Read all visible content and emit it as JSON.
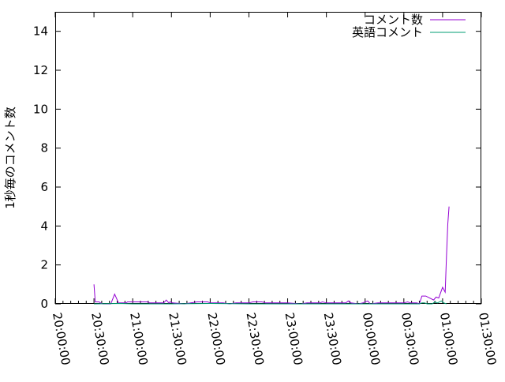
{
  "chart_data": {
    "type": "line",
    "title": "",
    "xlabel": "",
    "ylabel": "1秒毎のコメント数",
    "ylim": [
      0,
      15
    ],
    "yticks": [
      "0",
      "2",
      "4",
      "6",
      "8",
      "10",
      "12",
      "14"
    ],
    "xlim": [
      "20:00:00",
      "01:30:00"
    ],
    "xticks": [
      "20:00:00",
      "20:30:00",
      "21:00:00",
      "21:30:00",
      "22:00:00",
      "22:30:00",
      "23:00:00",
      "23:30:00",
      "00:00:00",
      "00:30:00",
      "01:00:00",
      "01:30:00"
    ],
    "grid": false,
    "legend": "top-right",
    "series": [
      {
        "name": "コメント数",
        "color": "#9400d3",
        "points": [
          [
            "20:30",
            1.0
          ],
          [
            "20:31",
            0.1
          ],
          [
            "20:34",
            0.1
          ],
          [
            "20:35",
            0.05
          ],
          [
            "20:37",
            0.0
          ],
          [
            "20:43",
            0.0
          ],
          [
            "20:46",
            0.5
          ],
          [
            "20:49",
            0.05
          ],
          [
            "20:55",
            0.05
          ],
          [
            "20:56",
            0.1
          ],
          [
            "21:05",
            0.1
          ],
          [
            "21:12",
            0.1
          ],
          [
            "21:13",
            0.05
          ],
          [
            "21:24",
            0.05
          ],
          [
            "21:26",
            0.2
          ],
          [
            "21:28",
            0.05
          ],
          [
            "21:29",
            0.1
          ],
          [
            "21:31",
            0.05
          ],
          [
            "21:40",
            0.0
          ],
          [
            "21:45",
            0.05
          ],
          [
            "21:50",
            0.1
          ],
          [
            "21:58",
            0.1
          ],
          [
            "22:00",
            0.05
          ],
          [
            "22:10",
            0.05
          ],
          [
            "22:15",
            0.0
          ],
          [
            "22:20",
            0.05
          ],
          [
            "22:30",
            0.05
          ],
          [
            "22:33",
            0.1
          ],
          [
            "22:40",
            0.1
          ],
          [
            "22:43",
            0.05
          ],
          [
            "23:00",
            0.05
          ],
          [
            "23:10",
            0.0
          ],
          [
            "23:15",
            0.05
          ],
          [
            "23:25",
            0.05
          ],
          [
            "23:27",
            0.1
          ],
          [
            "23:30",
            0.05
          ],
          [
            "23:45",
            0.05
          ],
          [
            "23:47",
            0.15
          ],
          [
            "23:49",
            0.05
          ],
          [
            "23:55",
            0.0
          ],
          [
            "23:58",
            0.05
          ],
          [
            "00:02",
            0.15
          ],
          [
            "00:04",
            0.0
          ],
          [
            "00:10",
            0.05
          ],
          [
            "00:20",
            0.05
          ],
          [
            "00:30",
            0.05
          ],
          [
            "00:33",
            0.1
          ],
          [
            "00:35",
            0.05
          ],
          [
            "00:40",
            0.05
          ],
          [
            "00:42",
            0.0
          ],
          [
            "00:44",
            0.4
          ],
          [
            "00:47",
            0.4
          ],
          [
            "00:53",
            0.2
          ],
          [
            "00:55",
            0.35
          ],
          [
            "00:57",
            0.3
          ],
          [
            "01:00",
            0.85
          ],
          [
            "01:02",
            0.6
          ],
          [
            "01:03",
            2.4
          ],
          [
            "01:04",
            4.1
          ],
          [
            "01:05",
            5.0
          ]
        ]
      },
      {
        "name": "英語コメント",
        "color": "#009e73",
        "points": [
          [
            "20:30",
            0.0
          ],
          [
            "20:50",
            0.02
          ],
          [
            "21:00",
            0.0
          ],
          [
            "21:30",
            0.0
          ],
          [
            "22:00",
            0.02
          ],
          [
            "22:30",
            0.0
          ],
          [
            "23:00",
            0.0
          ],
          [
            "23:30",
            0.0
          ],
          [
            "00:00",
            0.0
          ],
          [
            "00:30",
            0.0
          ],
          [
            "00:42",
            0.0
          ],
          [
            "00:44",
            0.05
          ],
          [
            "00:46",
            0.05
          ],
          [
            "00:48",
            0.0
          ],
          [
            "00:52",
            0.0
          ],
          [
            "00:54",
            0.1
          ],
          [
            "00:56",
            0.05
          ],
          [
            "00:59",
            0.15
          ],
          [
            "01:01",
            0.05
          ],
          [
            "01:03",
            0.0
          ]
        ]
      }
    ]
  }
}
